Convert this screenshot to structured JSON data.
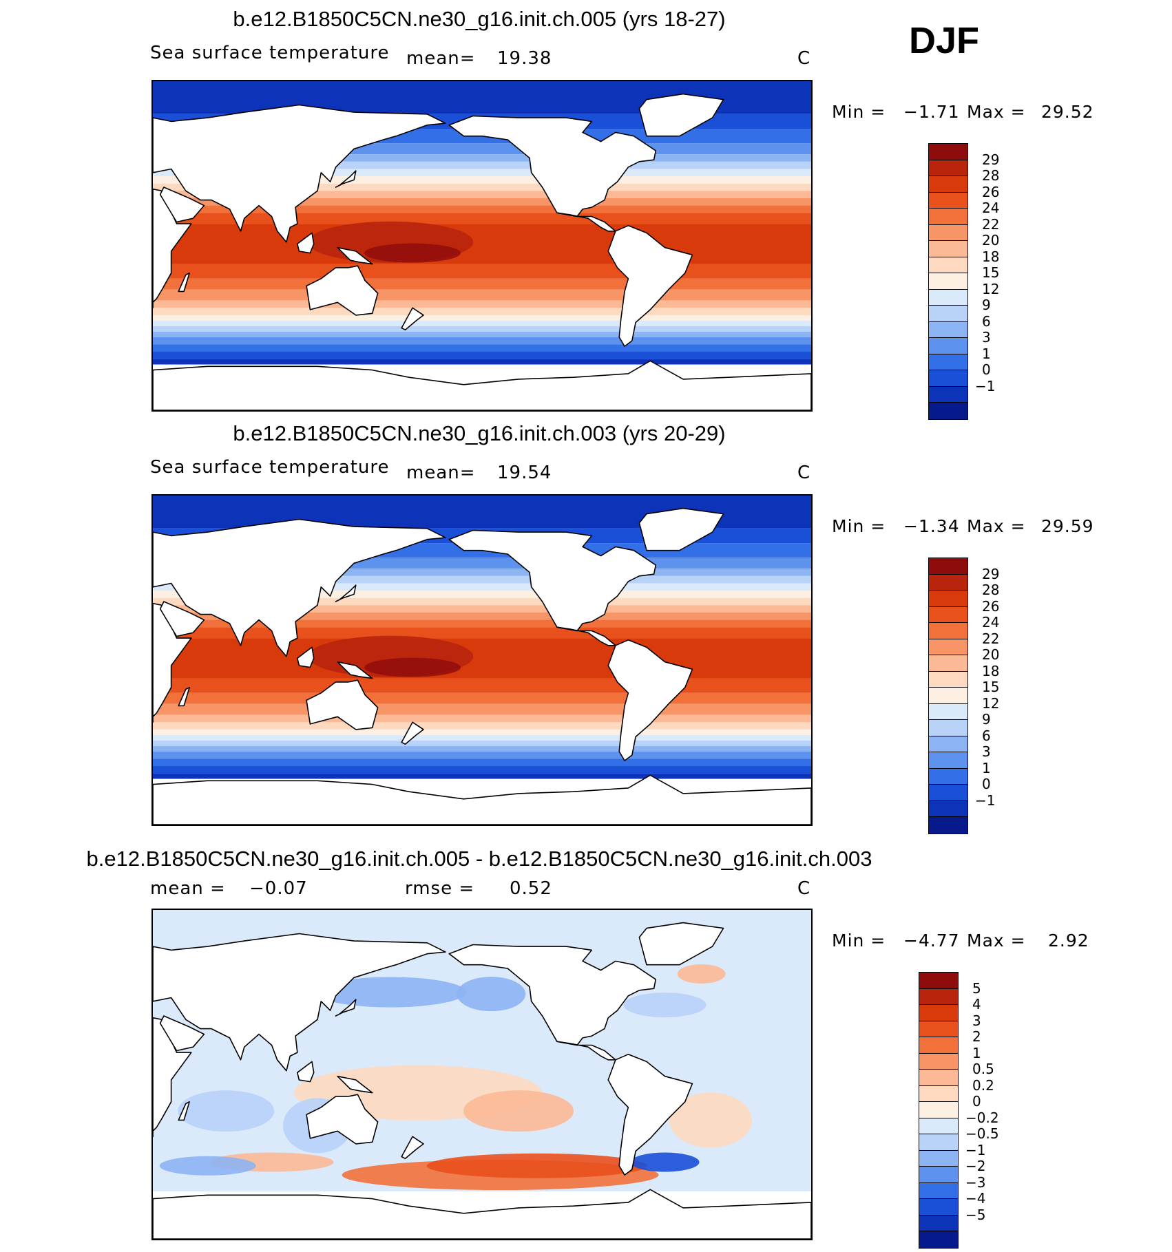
{
  "season": "DJF",
  "panels": [
    {
      "title": "b.e12.B1850C5CN.ne30_g16.init.ch.005 (yrs 18-27)",
      "left_label": "Sea surface temperature",
      "mid_label": "mean=",
      "mid_value": "19.38",
      "units": "C",
      "min_label": "Min =",
      "min_value": "−1.71",
      "max_label": "Max =",
      "max_value": "29.52",
      "palette": "sst"
    },
    {
      "title": "b.e12.B1850C5CN.ne30_g16.init.ch.003 (yrs 20-29)",
      "left_label": "Sea surface temperature",
      "mid_label": "mean=",
      "mid_value": "19.54",
      "units": "C",
      "min_label": "Min =",
      "min_value": "−1.34",
      "max_label": "Max =",
      "max_value": "29.59",
      "palette": "sst"
    },
    {
      "title": "b.e12.B1850C5CN.ne30_g16.init.ch.005 - b.e12.B1850C5CN.ne30_g16.init.ch.003",
      "left_label": "mean =",
      "left_value": "−0.07",
      "mid_label": "rmse =",
      "mid_value": "0.52",
      "units": "C",
      "min_label": "Min =",
      "min_value": "−4.77",
      "max_label": "Max =",
      "max_value": "2.92",
      "palette": "diff"
    }
  ],
  "colorbars": {
    "sst": {
      "labels": [
        "29",
        "28",
        "26",
        "24",
        "22",
        "20",
        "18",
        "15",
        "12",
        "9",
        "6",
        "3",
        "1",
        "0",
        "−1"
      ],
      "colors": [
        "#8e0b0b",
        "#b8250c",
        "#d93a0c",
        "#e8501c",
        "#f2713a",
        "#f89566",
        "#fbb995",
        "#fdd9c0",
        "#fdf0e2",
        "#dbeafb",
        "#b8d2f8",
        "#8cb4f3",
        "#5d92ee",
        "#336fe7",
        "#1a4fd8",
        "#0d33b8",
        "#061a8c"
      ]
    },
    "diff": {
      "labels": [
        "5",
        "4",
        "3",
        "2",
        "1",
        "0.5",
        "0.2",
        "0",
        "−0.2",
        "−0.5",
        "−1",
        "−2",
        "−3",
        "−4",
        "−5"
      ],
      "colors": [
        "#8e0b0b",
        "#b8250c",
        "#d93a0c",
        "#e8501c",
        "#f2713a",
        "#f89566",
        "#fbb995",
        "#fdd9c0",
        "#fdf0e2",
        "#dbeafb",
        "#b8d2f8",
        "#8cb4f3",
        "#5d92ee",
        "#336fe7",
        "#1a4fd8",
        "#0d33b8",
        "#061a8c"
      ]
    }
  }
}
